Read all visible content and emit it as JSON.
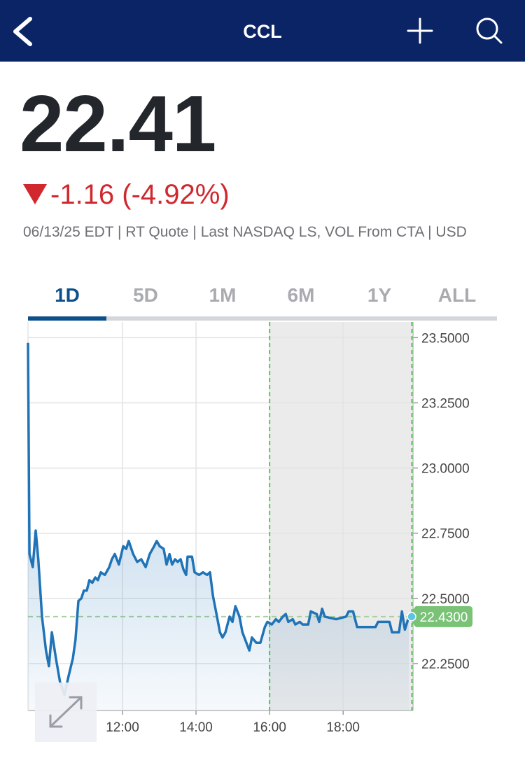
{
  "header": {
    "title": "CCL"
  },
  "quote": {
    "price": "22.41",
    "change": "-1.16 (-4.92%)",
    "meta": "06/13/25 EDT | RT Quote | Last NASDAQ LS, VOL From CTA | USD"
  },
  "tabs": [
    "1D",
    "5D",
    "1M",
    "6M",
    "1Y",
    "ALL"
  ],
  "selected_tab": 0,
  "chart_data": {
    "type": "line",
    "color": "#1f73b7",
    "x": [
      9.43,
      9.47,
      9.56,
      9.64,
      9.71,
      9.81,
      9.92,
      10.0,
      10.08,
      10.19,
      10.3,
      10.42,
      10.53,
      10.65,
      10.72,
      10.8,
      10.88,
      10.95,
      11.03,
      11.1,
      11.18,
      11.26,
      11.33,
      11.41,
      11.52,
      11.64,
      11.71,
      11.79,
      11.9,
      12.02,
      12.1,
      12.17,
      12.29,
      12.4,
      12.51,
      12.63,
      12.74,
      12.86,
      12.93,
      13.01,
      13.12,
      13.2,
      13.28,
      13.35,
      13.43,
      13.5,
      13.58,
      13.66,
      13.73,
      13.77,
      13.89,
      13.96,
      14.08,
      14.19,
      14.3,
      14.38,
      14.46,
      14.57,
      14.65,
      14.72,
      14.8,
      14.91,
      14.99,
      15.07,
      15.18,
      15.26,
      15.37,
      15.45,
      15.52,
      15.64,
      15.75,
      15.87,
      15.94,
      16.06,
      16.17,
      16.25,
      16.36,
      16.44,
      16.51,
      16.63,
      16.7,
      16.82,
      16.9,
      17.05,
      17.12,
      17.28,
      17.35,
      17.43,
      17.5,
      17.81,
      18.08,
      18.15,
      18.27,
      18.38,
      18.88,
      18.95,
      19.26,
      19.33,
      19.52,
      19.6,
      19.68,
      19.79
    ],
    "values": [
      23.48,
      22.67,
      22.62,
      22.76,
      22.65,
      22.43,
      22.3,
      22.24,
      22.37,
      22.27,
      22.18,
      22.13,
      22.2,
      22.27,
      22.34,
      22.49,
      22.5,
      22.53,
      22.53,
      22.57,
      22.56,
      22.58,
      22.57,
      22.6,
      22.59,
      22.62,
      22.65,
      22.67,
      22.63,
      22.7,
      22.69,
      22.72,
      22.67,
      22.64,
      22.65,
      22.62,
      22.67,
      22.7,
      22.72,
      22.7,
      22.69,
      22.63,
      22.67,
      22.63,
      22.65,
      22.64,
      22.65,
      22.61,
      22.59,
      22.66,
      22.66,
      22.6,
      22.59,
      22.6,
      22.59,
      22.6,
      22.51,
      22.43,
      22.37,
      22.35,
      22.37,
      22.43,
      22.41,
      22.47,
      22.43,
      22.37,
      22.33,
      22.3,
      22.35,
      22.33,
      22.33,
      22.39,
      22.41,
      22.4,
      22.42,
      22.41,
      22.43,
      22.44,
      22.41,
      22.42,
      22.4,
      22.41,
      22.4,
      22.4,
      22.45,
      22.44,
      22.41,
      22.46,
      22.43,
      22.42,
      22.43,
      22.45,
      22.45,
      22.39,
      22.39,
      22.41,
      22.41,
      22.37,
      22.37,
      22.45,
      22.38,
      22.43
    ],
    "xlim": [
      9.43,
      19.9
    ],
    "ylim": [
      22.07,
      23.56
    ],
    "xticks": [
      {
        "value": 12,
        "label": "12:00"
      },
      {
        "value": 14,
        "label": "14:00"
      },
      {
        "value": 16,
        "label": "16:00"
      },
      {
        "value": 18,
        "label": "18:00"
      }
    ],
    "yticks": [
      {
        "value": 22.25,
        "label": "22.2500"
      },
      {
        "value": 22.5,
        "label": "22.5000"
      },
      {
        "value": 22.75,
        "label": "22.7500"
      },
      {
        "value": 23.0,
        "label": "23.0000"
      },
      {
        "value": 23.25,
        "label": "23.2500"
      },
      {
        "value": 23.5,
        "label": "23.5000"
      }
    ],
    "grid": true,
    "shaded_range": [
      16,
      19.87
    ],
    "last_price": {
      "value": 22.43,
      "label": "22.4300"
    }
  }
}
